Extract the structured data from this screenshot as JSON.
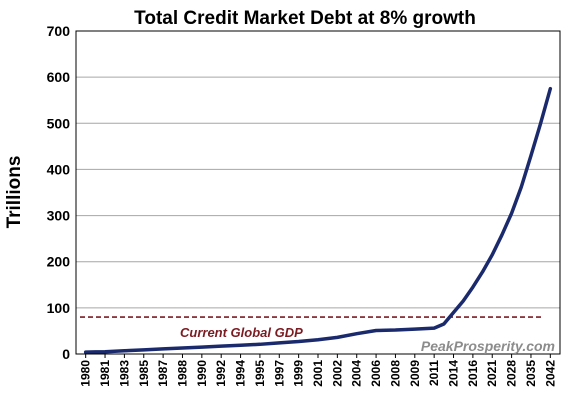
{
  "chart_data": {
    "type": "line",
    "title": "Total Credit Market Debt at 8% growth",
    "ylabel": "Trillions",
    "xlabel": "",
    "ylim": [
      0,
      700
    ],
    "yticks": [
      0,
      100,
      200,
      300,
      400,
      500,
      600,
      700
    ],
    "grid": "horizontal",
    "categories": [
      "1980",
      "1981",
      "1983",
      "1985",
      "1987",
      "1988",
      "1990",
      "1992",
      "1994",
      "1995",
      "1997",
      "1999",
      "2001",
      "2002",
      "2004",
      "2006",
      "2008",
      "2009",
      "2011",
      "2014",
      "2016",
      "2021",
      "2028",
      "2035",
      "2042"
    ],
    "series": [
      {
        "color": "#1a2a6c",
        "x": [
          0,
          0.5,
          1,
          2,
          3,
          4,
          5,
          6,
          7,
          8,
          9,
          10,
          11,
          12,
          13,
          14,
          15,
          16,
          17,
          18,
          18.5,
          19,
          19.5,
          20,
          20.5,
          21,
          21.5,
          22,
          22.5,
          23,
          23.5,
          24
        ],
        "values": [
          4,
          4.5,
          5,
          7,
          9,
          11,
          13,
          15,
          17,
          19,
          21,
          24,
          27,
          31,
          36,
          44,
          51,
          52,
          54,
          56,
          65,
          90,
          115,
          145,
          178,
          215,
          258,
          305,
          362,
          430,
          500,
          575
        ]
      }
    ],
    "reference_line": {
      "value": 80,
      "label": "Current Global GDP",
      "color": "#7b1c23",
      "style": "dashed"
    }
  },
  "watermark": "PeakProsperity.com"
}
